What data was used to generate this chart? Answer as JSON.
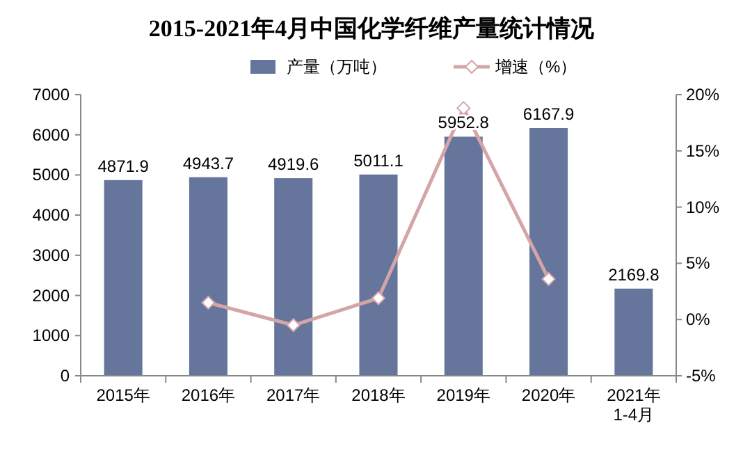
{
  "chart_data": {
    "type": "bar",
    "title": "2015-2021年4月中国化学纤维产量统计情况",
    "categories": [
      "2015年",
      "2016年",
      "2017年",
      "2018年",
      "2019年",
      "2020年",
      "2021年\n1-4月"
    ],
    "series": [
      {
        "name": "产量（万吨）",
        "color": "#66759c",
        "values": [
          4871.9,
          4943.7,
          4919.6,
          5011.1,
          5952.8,
          6167.9,
          2169.8
        ],
        "data_labels": true
      },
      {
        "name": "增速（%）",
        "type": "line",
        "axis": "y2",
        "color": "#d4a5a7",
        "marker": "diamond",
        "values": [
          null,
          1.5,
          -0.5,
          1.9,
          18.8,
          3.6,
          null
        ]
      }
    ],
    "ylim": [
      0,
      7000
    ],
    "yticks": [
      0,
      1000,
      2000,
      3000,
      4000,
      5000,
      6000,
      7000
    ],
    "y2lim": [
      -5,
      20
    ],
    "y2ticks": [
      {
        "value": -5,
        "label": "-5%"
      },
      {
        "value": 0,
        "label": "0%"
      },
      {
        "value": 5,
        "label": "5%"
      },
      {
        "value": 10,
        "label": "10%"
      },
      {
        "value": 15,
        "label": "15%"
      },
      {
        "value": 20,
        "label": "20%"
      }
    ],
    "legend": "top",
    "grid": false
  }
}
